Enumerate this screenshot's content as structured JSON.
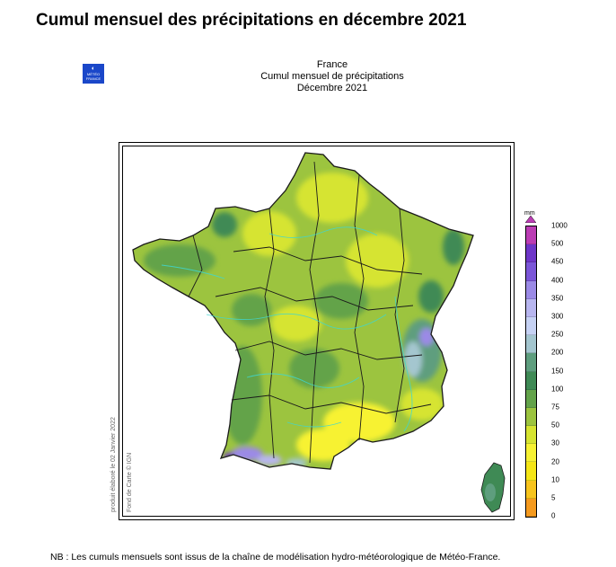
{
  "page_title": "Cumul mensuel des précipitations en décembre 2021",
  "logo": {
    "text_top": "MÉTÉO",
    "text_bottom": "FRANCE"
  },
  "map_header": {
    "line1": "France",
    "line2": "Cumul mensuel de précipitations",
    "line3": "Décembre 2021"
  },
  "side_notes": {
    "produced": "produit élaboré le 02 Janvier 2022",
    "basemap": "Fond de Carte © IGN"
  },
  "legend": {
    "unit": "mm",
    "levels": [
      "1000",
      "500",
      "450",
      "400",
      "350",
      "300",
      "250",
      "200",
      "150",
      "100",
      "75",
      "50",
      "30",
      "20",
      "10",
      "5",
      "0"
    ],
    "colors": [
      "#bb3db4",
      "#6e36c8",
      "#7b56d8",
      "#9b8ae6",
      "#b8b6f0",
      "#c6d2f4",
      "#a4c6cf",
      "#5e9e7e",
      "#3f8a55",
      "#63a34a",
      "#9cc43f",
      "#d6e431",
      "#f7f233",
      "#f5e617",
      "#f7c41d",
      "#f59a1e",
      "#f05a14"
    ]
  },
  "footnote": "NB : Les cumuls mensuels sont issus de la chaîne de modélisation hydro-météorologique de Météo-France."
}
